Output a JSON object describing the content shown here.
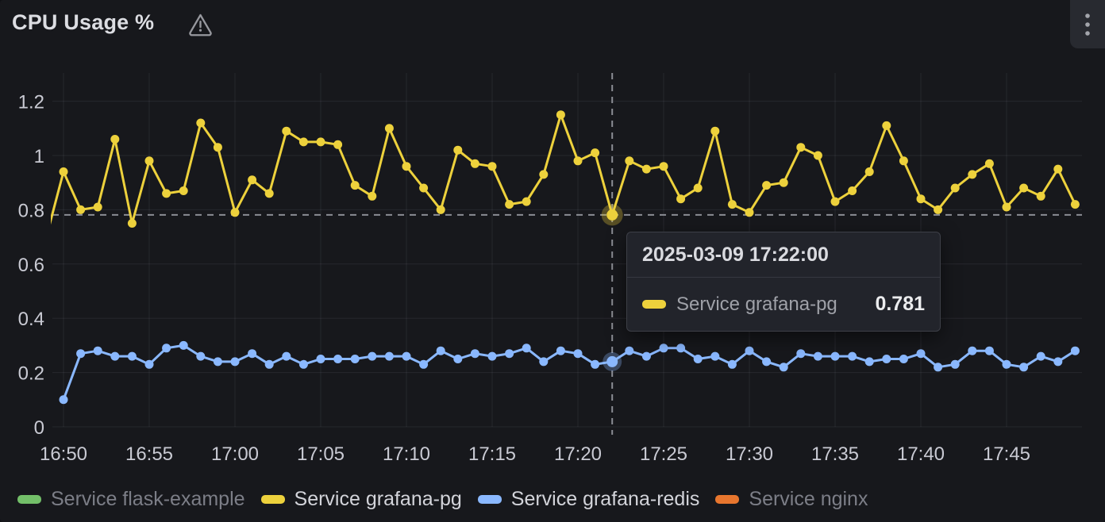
{
  "panel": {
    "title": "CPU Usage %",
    "warning_icon": "warning-triangle-icon",
    "menu_icon": "kebab-menu-icon"
  },
  "tooltip": {
    "timestamp": "2025-03-09 17:22:00",
    "series_label": "Service grafana-pg",
    "value": "0.781",
    "marker_color": "#edd13c"
  },
  "legend": {
    "items": [
      {
        "label": "Service flask-example",
        "color": "#73bf69",
        "active": false
      },
      {
        "label": "Service grafana-pg",
        "color": "#edd13c",
        "active": true
      },
      {
        "label": "Service grafana-redis",
        "color": "#8ab8ff",
        "active": true
      },
      {
        "label": "Service nginx",
        "color": "#e8762e",
        "active": false
      }
    ]
  },
  "colors": {
    "panel_bg": "#17181c",
    "axis_text": "#c9cad3",
    "gridline": "rgba(204,204,220,0.09)",
    "crosshair": "#8b8d94"
  },
  "chart_data": {
    "type": "line",
    "title": "CPU Usage %",
    "xlabel": "",
    "ylabel": "",
    "grid": true,
    "legend_position": "bottom",
    "ylim": [
      0,
      1.3
    ],
    "y_ticks": [
      0,
      0.2,
      0.4,
      0.6,
      0.8,
      1,
      1.2
    ],
    "x_tick_labels": [
      "16:50",
      "16:55",
      "17:00",
      "17:05",
      "17:10",
      "17:15",
      "17:20",
      "17:25",
      "17:30",
      "17:35",
      "17:40",
      "17:45"
    ],
    "series": [
      {
        "name": "Service flask-example",
        "color": "#73bf69",
        "hidden": true,
        "start": "16:50",
        "interval_min": 1,
        "values": []
      },
      {
        "name": "Service grafana-pg",
        "color": "#edd13c",
        "hidden": false,
        "start": "16:49",
        "interval_min": 1,
        "values": [
          0.7,
          0.94,
          0.8,
          0.81,
          1.06,
          0.75,
          0.98,
          0.86,
          0.87,
          1.12,
          1.03,
          0.79,
          0.91,
          0.86,
          1.09,
          1.05,
          1.05,
          1.04,
          0.89,
          0.85,
          1.1,
          0.96,
          0.88,
          0.8,
          1.02,
          0.97,
          0.96,
          0.82,
          0.83,
          0.93,
          1.15,
          0.98,
          1.01,
          0.781,
          0.98,
          0.95,
          0.96,
          0.84,
          0.88,
          1.09,
          0.82,
          0.79,
          0.89,
          0.9,
          1.03,
          1.0,
          0.83,
          0.87,
          0.94,
          1.11,
          0.98,
          0.84,
          0.8,
          0.88,
          0.93,
          0.97,
          0.81,
          0.88,
          0.85,
          0.95,
          0.82
        ]
      },
      {
        "name": "Service grafana-redis",
        "color": "#8ab8ff",
        "hidden": false,
        "start": "16:50",
        "interval_min": 1,
        "values": [
          0.1,
          0.27,
          0.28,
          0.26,
          0.26,
          0.23,
          0.29,
          0.3,
          0.26,
          0.24,
          0.24,
          0.27,
          0.23,
          0.26,
          0.23,
          0.25,
          0.25,
          0.25,
          0.26,
          0.26,
          0.26,
          0.23,
          0.28,
          0.25,
          0.27,
          0.26,
          0.27,
          0.29,
          0.24,
          0.28,
          0.27,
          0.23,
          0.24,
          0.28,
          0.26,
          0.29,
          0.29,
          0.25,
          0.26,
          0.23,
          0.28,
          0.24,
          0.22,
          0.27,
          0.26,
          0.26,
          0.26,
          0.24,
          0.25,
          0.25,
          0.27,
          0.22,
          0.23,
          0.28,
          0.28,
          0.23,
          0.22,
          0.26,
          0.24,
          0.28
        ]
      },
      {
        "name": "Service nginx",
        "color": "#e8762e",
        "hidden": true,
        "start": "16:50",
        "interval_min": 1,
        "values": []
      }
    ],
    "crosshair": {
      "time": "17:22",
      "points": [
        {
          "series": "Service grafana-pg",
          "value": 0.781
        },
        {
          "series": "Service grafana-redis",
          "value": 0.24
        }
      ]
    }
  }
}
